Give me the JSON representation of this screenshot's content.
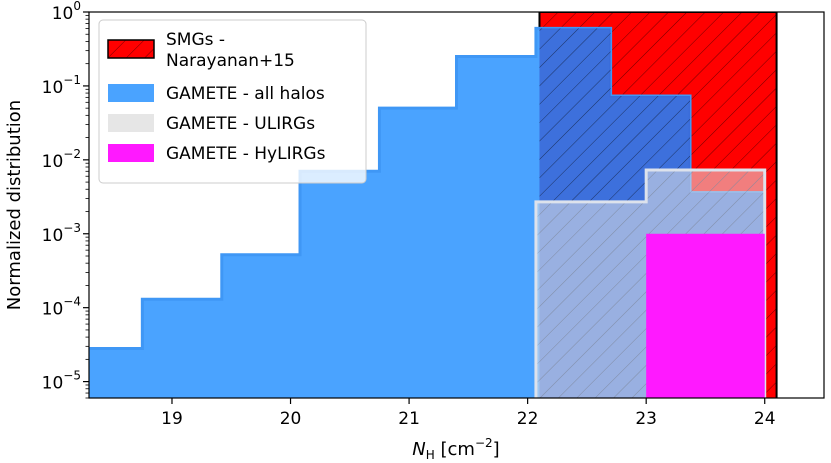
{
  "chart_data": {
    "type": "histogram",
    "xlabel": "N_H [cm^-2]",
    "ylabel": "Normalized distribution",
    "xlim": [
      18.3,
      24.5
    ],
    "ylim": [
      6e-06,
      1
    ],
    "yscale": "log",
    "x_ticks": [
      19,
      20,
      21,
      22,
      23,
      24
    ],
    "y_ticks": [
      {
        "value": 1e-05,
        "base": "10",
        "exp": "−5"
      },
      {
        "value": 0.0001,
        "base": "10",
        "exp": "−4"
      },
      {
        "value": 0.001,
        "base": "10",
        "exp": "−3"
      },
      {
        "value": 0.01,
        "base": "10",
        "exp": "−2"
      },
      {
        "value": 0.1,
        "base": "10",
        "exp": "−1"
      },
      {
        "value": 1,
        "base": "10",
        "exp": "0"
      }
    ],
    "legend_position": "upper-left",
    "series": [
      {
        "name": "SMGs - Narayanan+15",
        "legend_lines": [
          "SMGs -",
          "Narayanan+15"
        ],
        "color": "#ff0000",
        "hatch": "diagonal",
        "edges": [
          22.1,
          24.1
        ],
        "values": [
          1.0
        ]
      },
      {
        "name": "GAMETE - all halos",
        "legend_lines": [
          "GAMETE - all halos"
        ],
        "color": "#4aa3ff",
        "edges": [
          18.3,
          18.75,
          19.42,
          20.08,
          20.75,
          21.4,
          22.07,
          22.7,
          23.37,
          24.0
        ],
        "values": [
          2.8e-05,
          0.00013,
          0.00052,
          0.007,
          0.05,
          0.25,
          0.6,
          0.073,
          0.0036
        ]
      },
      {
        "name": "GAMETE - ULIRGs",
        "legend_lines": [
          "GAMETE - ULIRGs"
        ],
        "color": "#e6e6e6",
        "opacity": 0.55,
        "edges": [
          22.07,
          23.0,
          24.0
        ],
        "values": [
          0.0027,
          0.0073
        ]
      },
      {
        "name": "GAMETE - HyLIRGs",
        "legend_lines": [
          "GAMETE - HyLIRGs"
        ],
        "color": "#ff19ff",
        "edges": [
          23.0,
          24.0
        ],
        "values": [
          0.001
        ]
      }
    ]
  }
}
